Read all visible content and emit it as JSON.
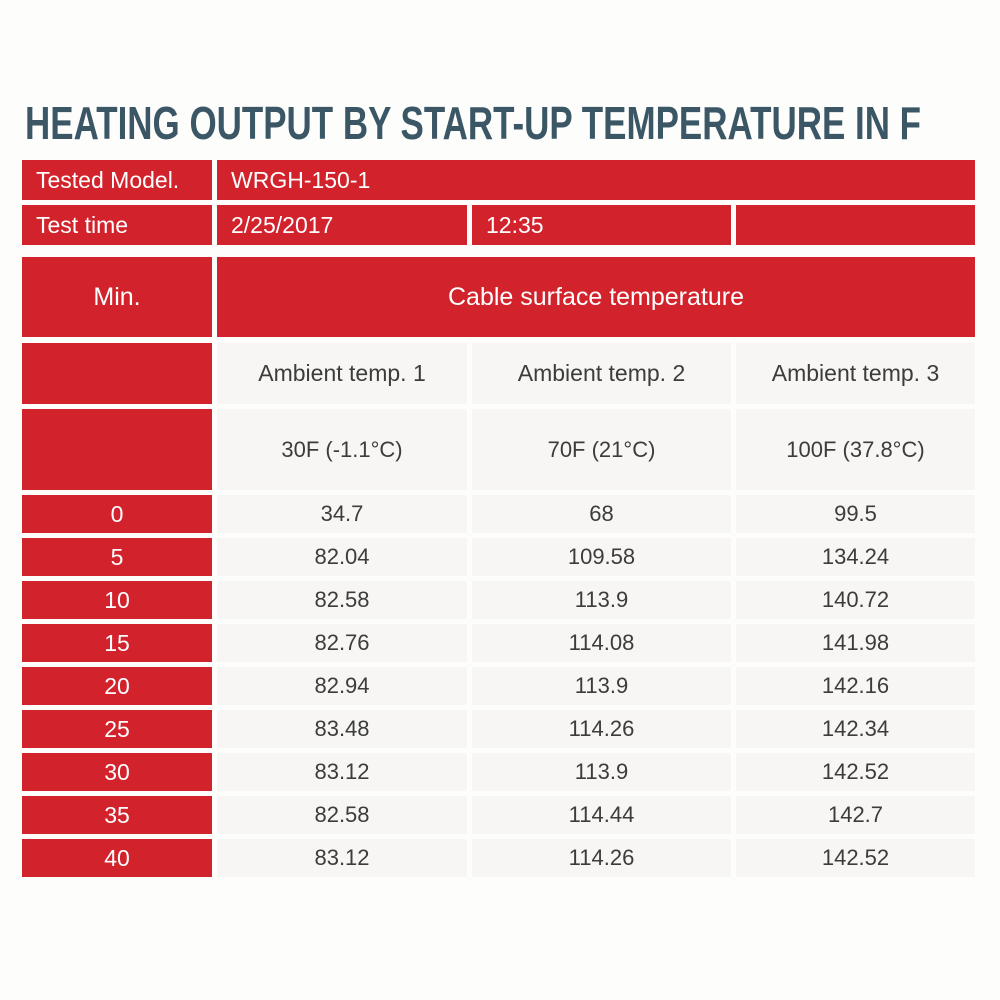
{
  "title": "HEATING OUTPUT BY START-UP TEMPERATURE IN F",
  "colors": {
    "accent_red": "#d2232c",
    "title_blue": "#3b5766",
    "cell_gray": "#f7f6f4",
    "text_dark": "#3c3c3c",
    "background": "#fdfdfc"
  },
  "info": {
    "model_label": "Tested Model.",
    "model_value": "WRGH-150-1",
    "time_label": "Test time",
    "time_date": "2/25/2017",
    "time_clock": "12:35",
    "time_extra": ""
  },
  "table": {
    "min_header": "Min.",
    "group_header": "Cable surface temperature",
    "col_headers": [
      "Ambient temp. 1",
      "Ambient temp. 2",
      "Ambient temp. 3"
    ],
    "col_subheaders": [
      "30F (-1.1°C)",
      "70F (21°C)",
      "100F (37.8°C)"
    ],
    "rows": [
      {
        "min": "0",
        "values": [
          "34.7",
          "68",
          "99.5"
        ]
      },
      {
        "min": "5",
        "values": [
          "82.04",
          "109.58",
          "134.24"
        ]
      },
      {
        "min": "10",
        "values": [
          "82.58",
          "113.9",
          "140.72"
        ]
      },
      {
        "min": "15",
        "values": [
          "82.76",
          "114.08",
          "141.98"
        ]
      },
      {
        "min": "20",
        "values": [
          "82.94",
          "113.9",
          "142.16"
        ]
      },
      {
        "min": "25",
        "values": [
          "83.48",
          "114.26",
          "142.34"
        ]
      },
      {
        "min": "30",
        "values": [
          "83.12",
          "113.9",
          "142.52"
        ]
      },
      {
        "min": "35",
        "values": [
          "82.58",
          "114.44",
          "142.7"
        ]
      },
      {
        "min": "40",
        "values": [
          "83.12",
          "114.26",
          "142.52"
        ]
      }
    ]
  },
  "chart_data": {
    "type": "table",
    "title": "HEATING OUTPUT BY START-UP TEMPERATURE IN F",
    "tested_model": "WRGH-150-1",
    "test_date": "2/25/2017",
    "test_time": "12:35",
    "row_label": "Min.",
    "group_label": "Cable surface temperature",
    "minutes": [
      0,
      5,
      10,
      15,
      20,
      25,
      30,
      35,
      40
    ],
    "series": [
      {
        "name": "Ambient temp. 1 30F (-1.1°C)",
        "values": [
          34.7,
          82.04,
          82.58,
          82.76,
          82.94,
          83.48,
          83.12,
          82.58,
          83.12
        ]
      },
      {
        "name": "Ambient temp. 2 70F (21°C)",
        "values": [
          68,
          109.58,
          113.9,
          114.08,
          113.9,
          114.26,
          113.9,
          114.44,
          114.26
        ]
      },
      {
        "name": "Ambient temp. 3 100F (37.8°C)",
        "values": [
          99.5,
          134.24,
          140.72,
          141.98,
          142.16,
          142.34,
          142.52,
          142.7,
          142.52
        ]
      }
    ]
  }
}
